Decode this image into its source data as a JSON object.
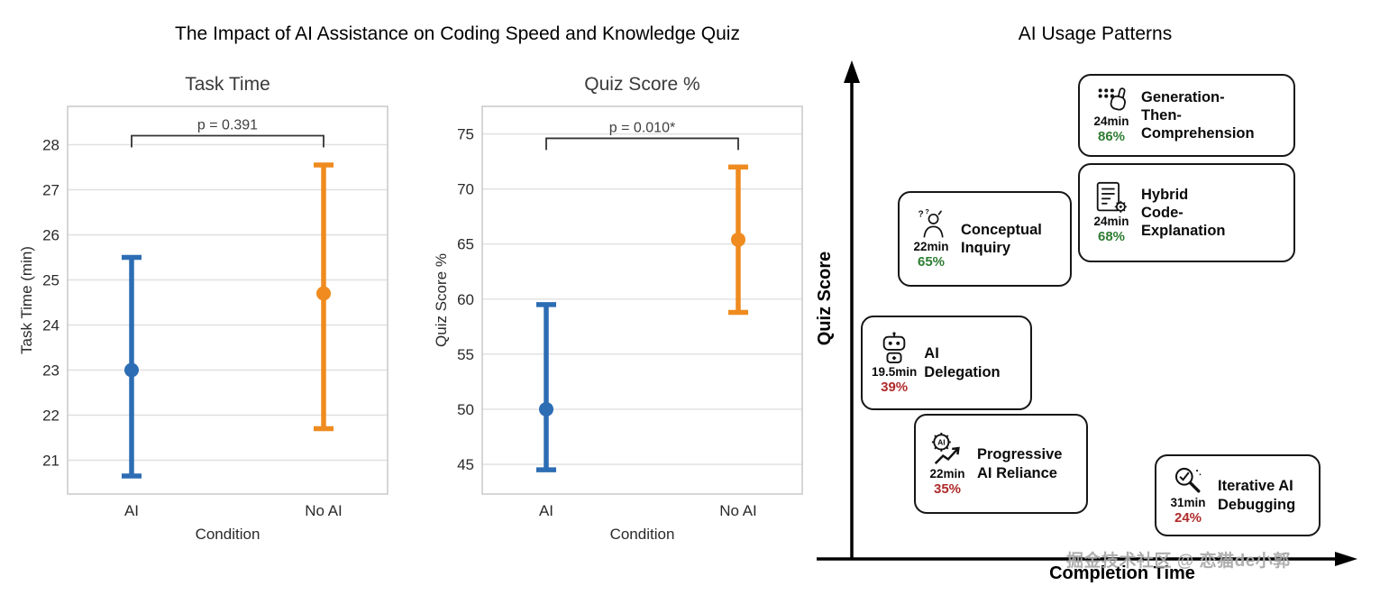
{
  "page": {
    "main_title": "The Impact of AI Assistance on Coding Speed and Knowledge Quiz",
    "watermark": "掘金技术社区 @ 恋猫de小郭"
  },
  "chart_data": [
    {
      "type": "errorbar",
      "title": "Task Time",
      "xlabel": "Condition",
      "ylabel": "Task Time (min)",
      "categories": [
        "AI",
        "No AI"
      ],
      "series": [
        {
          "name": "AI",
          "mean": 23.0,
          "ci_low": 20.65,
          "ci_high": 25.5,
          "color": "#2d6db4"
        },
        {
          "name": "No AI",
          "mean": 24.7,
          "ci_low": 21.7,
          "ci_high": 27.55,
          "color": "#ef8b1f"
        }
      ],
      "yticks": [
        21,
        22,
        23,
        24,
        25,
        26,
        27,
        28
      ],
      "ylim": [
        20.25,
        28.85
      ],
      "grid": true,
      "legend": false,
      "significance": {
        "label": "p = 0.391",
        "bracket_y": 28.2
      }
    },
    {
      "type": "errorbar",
      "title": "Quiz Score %",
      "xlabel": "Condition",
      "ylabel": "Quiz Score %",
      "categories": [
        "AI",
        "No AI"
      ],
      "series": [
        {
          "name": "AI",
          "mean": 50.0,
          "ci_low": 44.5,
          "ci_high": 59.5,
          "color": "#2d6db4"
        },
        {
          "name": "No AI",
          "mean": 65.4,
          "ci_low": 58.8,
          "ci_high": 72.0,
          "color": "#ef8b1f"
        }
      ],
      "yticks": [
        45,
        50,
        55,
        60,
        65,
        70,
        75
      ],
      "ylim": [
        42.3,
        77.5
      ],
      "grid": true,
      "legend": false,
      "significance": {
        "label": "p = 0.010*",
        "bracket_y": 74.6
      }
    }
  ],
  "usage_panel": {
    "title": "AI Usage Patterns",
    "x_axis_label": "Completion Time",
    "y_axis_label": "Quiz Score",
    "positive_color": "#2e7d32",
    "negative_color": "#b02a2a",
    "patterns": [
      {
        "label": "Generation-\nThen-\nComprehension",
        "time": "24min",
        "score": "86%",
        "sentiment": "positive",
        "icon": "typing-hand-icon"
      },
      {
        "label": "Hybrid\nCode-\nExplanation",
        "time": "24min",
        "score": "68%",
        "sentiment": "positive",
        "icon": "document-gear-icon"
      },
      {
        "label": "Conceptual\nInquiry",
        "time": "22min",
        "score": "65%",
        "sentiment": "positive",
        "icon": "thinking-person-icon"
      },
      {
        "label": "AI\nDelegation",
        "time": "19.5min",
        "score": "39%",
        "sentiment": "negative",
        "icon": "robot-icon"
      },
      {
        "label": "Progressive\nAI Reliance",
        "time": "22min",
        "score": "35%",
        "sentiment": "negative",
        "icon": "ai-gear-growth-icon"
      },
      {
        "label": "Iterative AI\nDebugging",
        "time": "31min",
        "score": "24%",
        "sentiment": "negative",
        "icon": "magnifier-check-icon"
      }
    ]
  }
}
